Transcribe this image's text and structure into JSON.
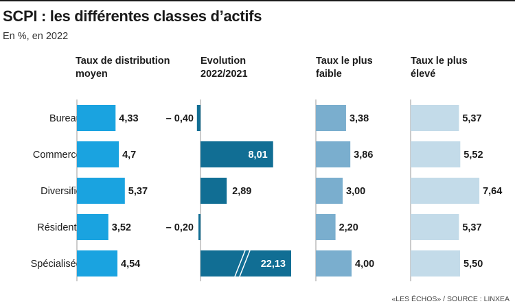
{
  "title": "SCPI : les différentes classes d’actifs",
  "subtitle": "En %, en 2022",
  "source": "«LES ÉCHOS» / SOURCE : LINXEA",
  "colors": {
    "distribution": "#1aa3e0",
    "evolution": "#116e94",
    "faible": "#7aaece",
    "eleve": "#c3dbe9",
    "axis": "#9a9a9a"
  },
  "chart_data": {
    "type": "bar",
    "categories": [
      "Bureaux",
      "Commerces",
      "Diversifiés",
      "Résidentiel",
      "Spécialisées"
    ],
    "series": [
      {
        "name": "Taux de distribution moyen",
        "values": [
          4.33,
          4.7,
          5.37,
          3.52,
          4.54
        ],
        "labels": [
          "4,33",
          "4,7",
          "5,37",
          "3,52",
          "4,54"
        ]
      },
      {
        "name": "Evolution 2022/2021",
        "values": [
          -0.4,
          8.01,
          2.89,
          -0.2,
          22.13
        ],
        "labels": [
          "– 0,40",
          "8,01",
          "2,89",
          "– 0,20",
          "22,13"
        ],
        "broken_bar": "Spécialisées"
      },
      {
        "name": "Taux le plus faible",
        "values": [
          3.38,
          3.86,
          3.0,
          2.2,
          4.0
        ],
        "labels": [
          "3,38",
          "3,86",
          "3,00",
          "2,20",
          "4,00"
        ]
      },
      {
        "name": "Taux le plus élevé",
        "values": [
          5.37,
          5.52,
          7.64,
          5.37,
          5.5
        ],
        "labels": [
          "5,37",
          "5,52",
          "7,64",
          "5,37",
          "5,50"
        ]
      }
    ]
  }
}
